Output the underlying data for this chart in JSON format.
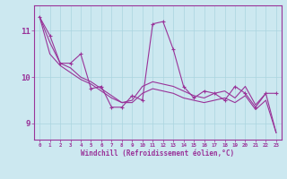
{
  "xlabel": "Windchill (Refroidissement éolien,°C)",
  "ylabel": "",
  "bg_color": "#cce8f0",
  "line_color": "#993399",
  "grid_color": "#aad4e0",
  "x_ticks": [
    0,
    1,
    2,
    3,
    4,
    5,
    6,
    7,
    8,
    9,
    10,
    11,
    12,
    13,
    14,
    15,
    16,
    17,
    18,
    19,
    20,
    21,
    22,
    23
  ],
  "y_ticks": [
    9,
    10,
    11
  ],
  "ylim": [
    8.65,
    11.55
  ],
  "xlim": [
    -0.5,
    23.5
  ],
  "series": [
    [
      11.3,
      10.9,
      10.3,
      10.3,
      10.5,
      9.75,
      9.8,
      9.35,
      9.35,
      9.6,
      9.5,
      11.15,
      11.2,
      10.6,
      9.8,
      9.55,
      9.7,
      9.65,
      9.5,
      9.8,
      9.65,
      9.35,
      9.65,
      9.65
    ],
    [
      11.3,
      10.75,
      10.3,
      10.2,
      10.0,
      9.9,
      9.75,
      9.6,
      9.45,
      9.5,
      9.8,
      9.9,
      9.85,
      9.8,
      9.7,
      9.6,
      9.55,
      9.65,
      9.7,
      9.55,
      9.8,
      9.4,
      9.65,
      8.8
    ],
    [
      11.3,
      10.5,
      10.25,
      10.1,
      9.95,
      9.85,
      9.7,
      9.55,
      9.45,
      9.45,
      9.65,
      9.75,
      9.7,
      9.65,
      9.55,
      9.5,
      9.45,
      9.5,
      9.55,
      9.45,
      9.6,
      9.3,
      9.5,
      8.8
    ]
  ]
}
